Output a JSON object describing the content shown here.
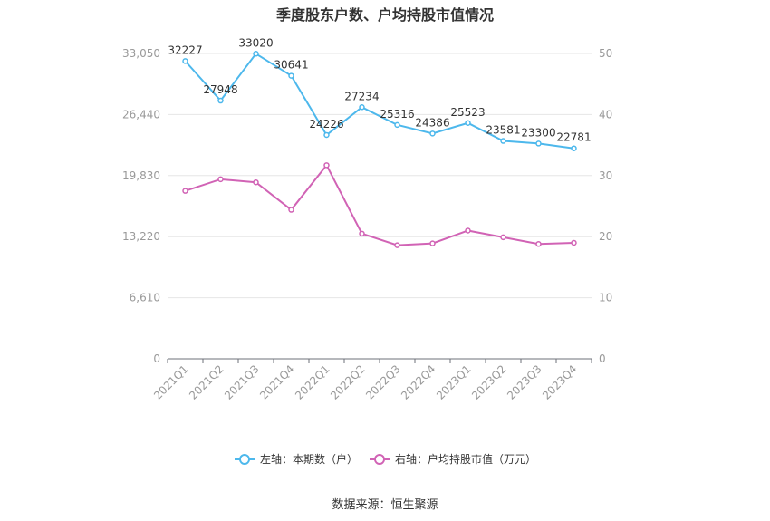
{
  "title": "季度股东户数、户均持股市值情况",
  "source": "数据来源：恒生聚源",
  "chart_data": {
    "type": "line",
    "categories": [
      "2021Q1",
      "2021Q2",
      "2021Q3",
      "2021Q4",
      "2022Q1",
      "2022Q2",
      "2022Q3",
      "2022Q4",
      "2023Q1",
      "2023Q2",
      "2023Q3",
      "2023Q4"
    ],
    "series": [
      {
        "name": "左轴：本期数（户）",
        "axis": "left",
        "color": "#4db8ec",
        "values": [
          32227,
          27948,
          33020,
          30641,
          24226,
          27234,
          25316,
          24386,
          25523,
          23581,
          23300,
          22781
        ],
        "labels": [
          "32227",
          "27948",
          "33020",
          "30641",
          "24226",
          "27234",
          "25316",
          "24386",
          "25523",
          "23581",
          "23300",
          "22781"
        ]
      },
      {
        "name": "右轴：户均持股市值（万元）",
        "axis": "right",
        "color": "#d163b5",
        "values": [
          27.5,
          29.4,
          28.9,
          24.4,
          31.7,
          20.5,
          18.6,
          18.9,
          21.0,
          19.9,
          18.8,
          19.0
        ]
      }
    ],
    "y_left": {
      "min": 0,
      "max": 33050,
      "ticks": [
        0,
        6610,
        13220,
        19830,
        26440,
        33050
      ],
      "tick_labels": [
        "0",
        "6,610",
        "13,220",
        "19,830",
        "26,440",
        "33,050"
      ]
    },
    "y_right": {
      "min": 0,
      "max": 50,
      "ticks": [
        0,
        10,
        20,
        30,
        40,
        50
      ],
      "tick_labels": [
        "0",
        "10",
        "20",
        "30",
        "40",
        "50"
      ]
    },
    "grid": true,
    "legend_position": "bottom"
  }
}
